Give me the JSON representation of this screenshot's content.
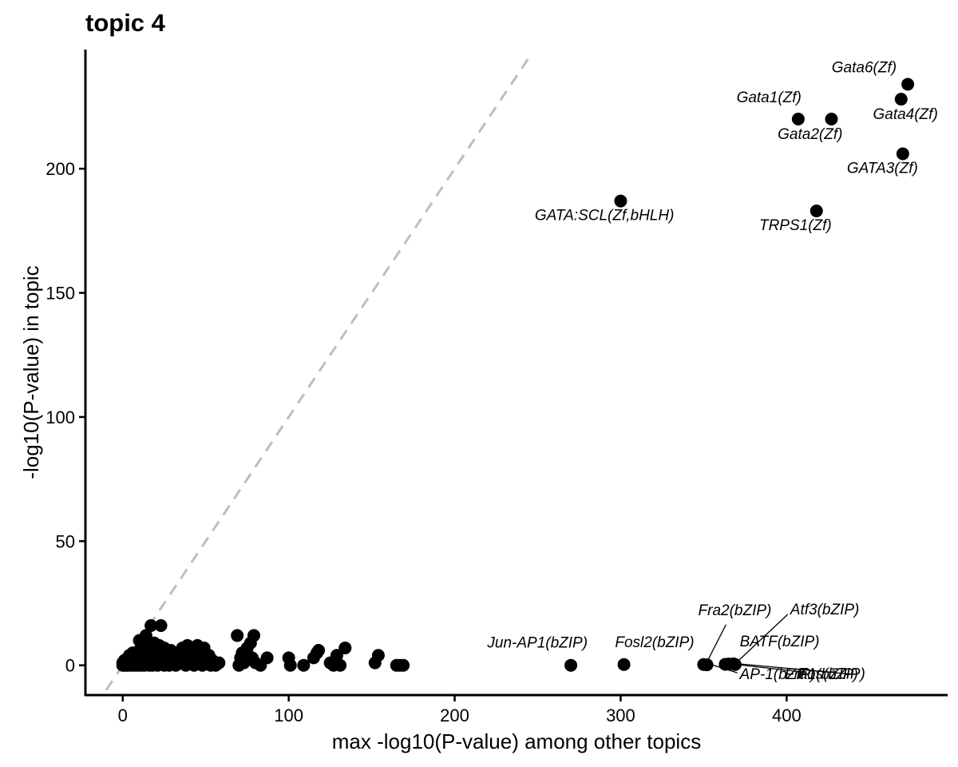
{
  "chart_data": {
    "type": "scatter",
    "title": "topic 4",
    "xlabel": "max -log10(P-value) among other topics",
    "ylabel": "-log10(P-value) in topic",
    "xlim": [
      -22,
      497
    ],
    "ylim": [
      -12,
      248
    ],
    "xticks": [
      0,
      100,
      200,
      300,
      400
    ],
    "yticks": [
      0,
      50,
      100,
      150,
      200
    ],
    "grid": false,
    "reference_line": {
      "type": "identity",
      "style": "dashed",
      "color": "#bebebe"
    },
    "point_color": "#000000",
    "labeled_points": [
      {
        "label": "Gata6(Zf)",
        "x": 473,
        "y": 234
      },
      {
        "label": "Gata4(Zf)",
        "x": 469,
        "y": 228
      },
      {
        "label": "Gata1(Zf)",
        "x": 407,
        "y": 220
      },
      {
        "label": "Gata2(Zf)",
        "x": 427,
        "y": 220
      },
      {
        "label": "GATA3(Zf)",
        "x": 470,
        "y": 206
      },
      {
        "label": "GATA:SCL(Zf,bHLH)",
        "x": 300,
        "y": 187
      },
      {
        "label": "TRPS1(Zf)",
        "x": 418,
        "y": 183
      },
      {
        "label": "Jun-AP1(bZIP)",
        "x": 270,
        "y": 0
      },
      {
        "label": "Fosl2(bZIP)",
        "x": 302,
        "y": 0.3
      },
      {
        "label": "Fra2(bZIP)",
        "x": 350,
        "y": 0.3
      },
      {
        "label": "AP-1(bZIP)",
        "x": 352,
        "y": 0.2
      },
      {
        "label": "Atf3(bZIP)",
        "x": 368,
        "y": 0.6
      },
      {
        "label": "BATF(bZIP)",
        "x": 365,
        "y": 0.5
      },
      {
        "label": "Fos(bZIP)",
        "x": 363,
        "y": 0.4
      },
      {
        "label": "Fra1(bZIP)",
        "x": 369,
        "y": 0.3
      }
    ],
    "points": [
      [
        0,
        0
      ],
      [
        0,
        1
      ],
      [
        1,
        0
      ],
      [
        1,
        2
      ],
      [
        2,
        0
      ],
      [
        2,
        1
      ],
      [
        3,
        3
      ],
      [
        3,
        0
      ],
      [
        4,
        1
      ],
      [
        4,
        4
      ],
      [
        5,
        0
      ],
      [
        5,
        2
      ],
      [
        6,
        3
      ],
      [
        6,
        5
      ],
      [
        7,
        0
      ],
      [
        7,
        1
      ],
      [
        8,
        2
      ],
      [
        8,
        4
      ],
      [
        9,
        0
      ],
      [
        9,
        3
      ],
      [
        10,
        1
      ],
      [
        10,
        6
      ],
      [
        10,
        10
      ],
      [
        11,
        0
      ],
      [
        11,
        4
      ],
      [
        12,
        2
      ],
      [
        12,
        7
      ],
      [
        13,
        0
      ],
      [
        13,
        3
      ],
      [
        14,
        5
      ],
      [
        14,
        12
      ],
      [
        15,
        1
      ],
      [
        15,
        8
      ],
      [
        16,
        0
      ],
      [
        16,
        4
      ],
      [
        17,
        2
      ],
      [
        17,
        16
      ],
      [
        18,
        0
      ],
      [
        18,
        6
      ],
      [
        19,
        3
      ],
      [
        19,
        9
      ],
      [
        20,
        1
      ],
      [
        20,
        5
      ],
      [
        21,
        7
      ],
      [
        21,
        0
      ],
      [
        22,
        3
      ],
      [
        22,
        8
      ],
      [
        23,
        16
      ],
      [
        23,
        1
      ],
      [
        24,
        4
      ],
      [
        25,
        0
      ],
      [
        25,
        7
      ],
      [
        26,
        2
      ],
      [
        27,
        5
      ],
      [
        28,
        0
      ],
      [
        28,
        3
      ],
      [
        29,
        6
      ],
      [
        30,
        1
      ],
      [
        31,
        4
      ],
      [
        32,
        0
      ],
      [
        33,
        2
      ],
      [
        34,
        5
      ],
      [
        35,
        1
      ],
      [
        36,
        7
      ],
      [
        37,
        3
      ],
      [
        38,
        0
      ],
      [
        39,
        8
      ],
      [
        40,
        4
      ],
      [
        41,
        1
      ],
      [
        42,
        6
      ],
      [
        43,
        0
      ],
      [
        44,
        3
      ],
      [
        45,
        8
      ],
      [
        46,
        2
      ],
      [
        47,
        5
      ],
      [
        48,
        0
      ],
      [
        49,
        7
      ],
      [
        50,
        3
      ],
      [
        51,
        1
      ],
      [
        52,
        4
      ],
      [
        53,
        0
      ],
      [
        54,
        2
      ],
      [
        55,
        1
      ],
      [
        56,
        0
      ],
      [
        58,
        1
      ],
      [
        69,
        12
      ],
      [
        70,
        0
      ],
      [
        71,
        3
      ],
      [
        72,
        5
      ],
      [
        73,
        1
      ],
      [
        75,
        7
      ],
      [
        77,
        9
      ],
      [
        78,
        3
      ],
      [
        79,
        12
      ],
      [
        80,
        1
      ],
      [
        83,
        0
      ],
      [
        87,
        3
      ],
      [
        100,
        3
      ],
      [
        101,
        0
      ],
      [
        109,
        0
      ],
      [
        115,
        3
      ],
      [
        117,
        5
      ],
      [
        118,
        6
      ],
      [
        125,
        1
      ],
      [
        127,
        0
      ],
      [
        129,
        4
      ],
      [
        131,
        0
      ],
      [
        134,
        7
      ],
      [
        152,
        1
      ],
      [
        154,
        4
      ],
      [
        165,
        0
      ],
      [
        167,
        0
      ],
      [
        169,
        0
      ]
    ]
  }
}
